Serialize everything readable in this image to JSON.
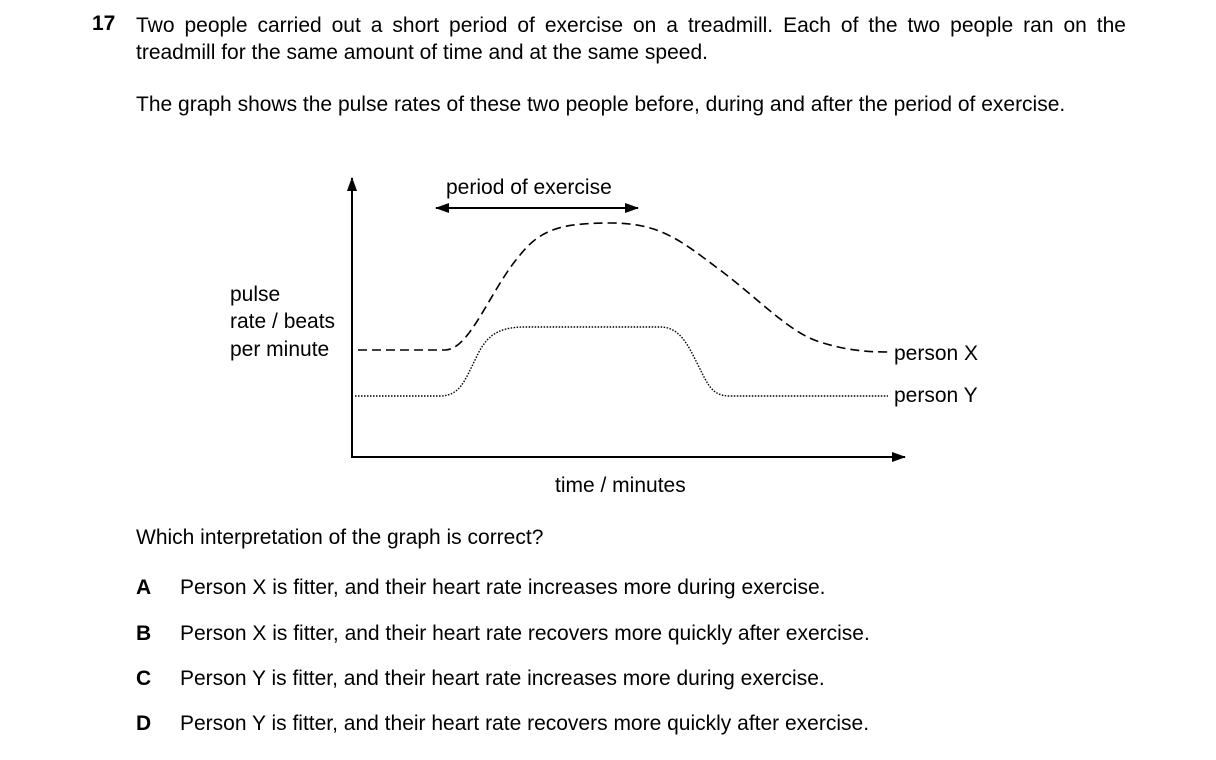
{
  "question": {
    "number": "17",
    "paragraph_1": "Two people carried out a short period of exercise on a treadmill. Each of the two people ran on the treadmill for the same amount of time and at the same speed.",
    "paragraph_2": "The graph shows the pulse rates of these two people before, during and after the period of exercise.",
    "prompt": "Which interpretation of the graph is correct?"
  },
  "graph": {
    "exercise_label": "period of exercise",
    "y_label_lines": [
      "pulse",
      "rate / beats",
      "per minute"
    ],
    "x_label": "time / minutes",
    "line_x_label": "person X",
    "line_y_label": "person Y"
  },
  "options": [
    {
      "letter": "A",
      "text": "Person X is fitter, and their heart rate increases more during exercise."
    },
    {
      "letter": "B",
      "text": "Person X is fitter, and their heart rate recovers more quickly after exercise."
    },
    {
      "letter": "C",
      "text": "Person Y is fitter, and their heart rate increases more during exercise."
    },
    {
      "letter": "D",
      "text": "Person Y is fitter, and their heart rate recovers more quickly after exercise."
    }
  ]
}
